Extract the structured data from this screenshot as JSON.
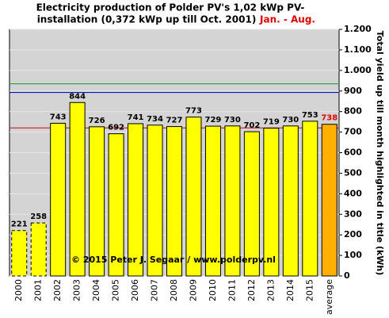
{
  "chart_data": {
    "type": "bar",
    "title": "Electricity production  of Polder PV's 1,02 kWp PV-",
    "title_line2": "installation  (0,372 kWp up till Oct. 2001)",
    "title_highlight": "Jan. - Aug.",
    "y_axis_label": "Total yield up till month highlighted in title (kWh)",
    "annotation": "© 2015 Peter J. Segaar / www.polderpv.nl",
    "categories": [
      "2000",
      "2001",
      "2002",
      "2003",
      "2004",
      "2005",
      "2006",
      "2007",
      "2008",
      "2009",
      "2010",
      "2011",
      "2012",
      "2013",
      "2014",
      "2015",
      "average"
    ],
    "values": [
      221,
      258,
      743,
      844,
      726,
      692,
      741,
      734,
      727,
      773,
      729,
      730,
      702,
      719,
      730,
      753,
      738
    ],
    "colors": [
      "#ffff00",
      "#ffff00",
      "#ffff00",
      "#ffff00",
      "#ffff00",
      "#ffff00",
      "#ffff00",
      "#ffff00",
      "#ffff00",
      "#ffff00",
      "#ffff00",
      "#ffff00",
      "#ffff00",
      "#ffff00",
      "#ffff00",
      "#ffff00",
      "#ffb000"
    ],
    "bar_styles": [
      "dashed",
      "dashed",
      "solid",
      "solid",
      "solid",
      "solid",
      "solid",
      "solid",
      "solid",
      "solid",
      "solid",
      "solid",
      "solid",
      "solid",
      "solid",
      "solid",
      "solid"
    ],
    "label_colors": [
      "#000000",
      "#000000",
      "#000000",
      "#000000",
      "#000000",
      "#000000",
      "#000000",
      "#000000",
      "#000000",
      "#000000",
      "#000000",
      "#000000",
      "#000000",
      "#000000",
      "#000000",
      "#000000",
      "#e00000"
    ],
    "reference_lines": [
      {
        "value": 935,
        "color": "#2e9e4a"
      },
      {
        "value": 893,
        "color": "#1010b0"
      },
      {
        "value": 720,
        "color": "#d03030"
      }
    ],
    "ylim": [
      0,
      1200
    ],
    "yticks": [
      0,
      100,
      200,
      300,
      400,
      500,
      600,
      700,
      800,
      900,
      {
        "value": 1000,
        "label": "1.000"
      },
      {
        "value": 1100,
        "label": "1.100"
      },
      {
        "value": 1200,
        "label": "1.200"
      }
    ],
    "grid": true,
    "y_axis_side": "right"
  }
}
